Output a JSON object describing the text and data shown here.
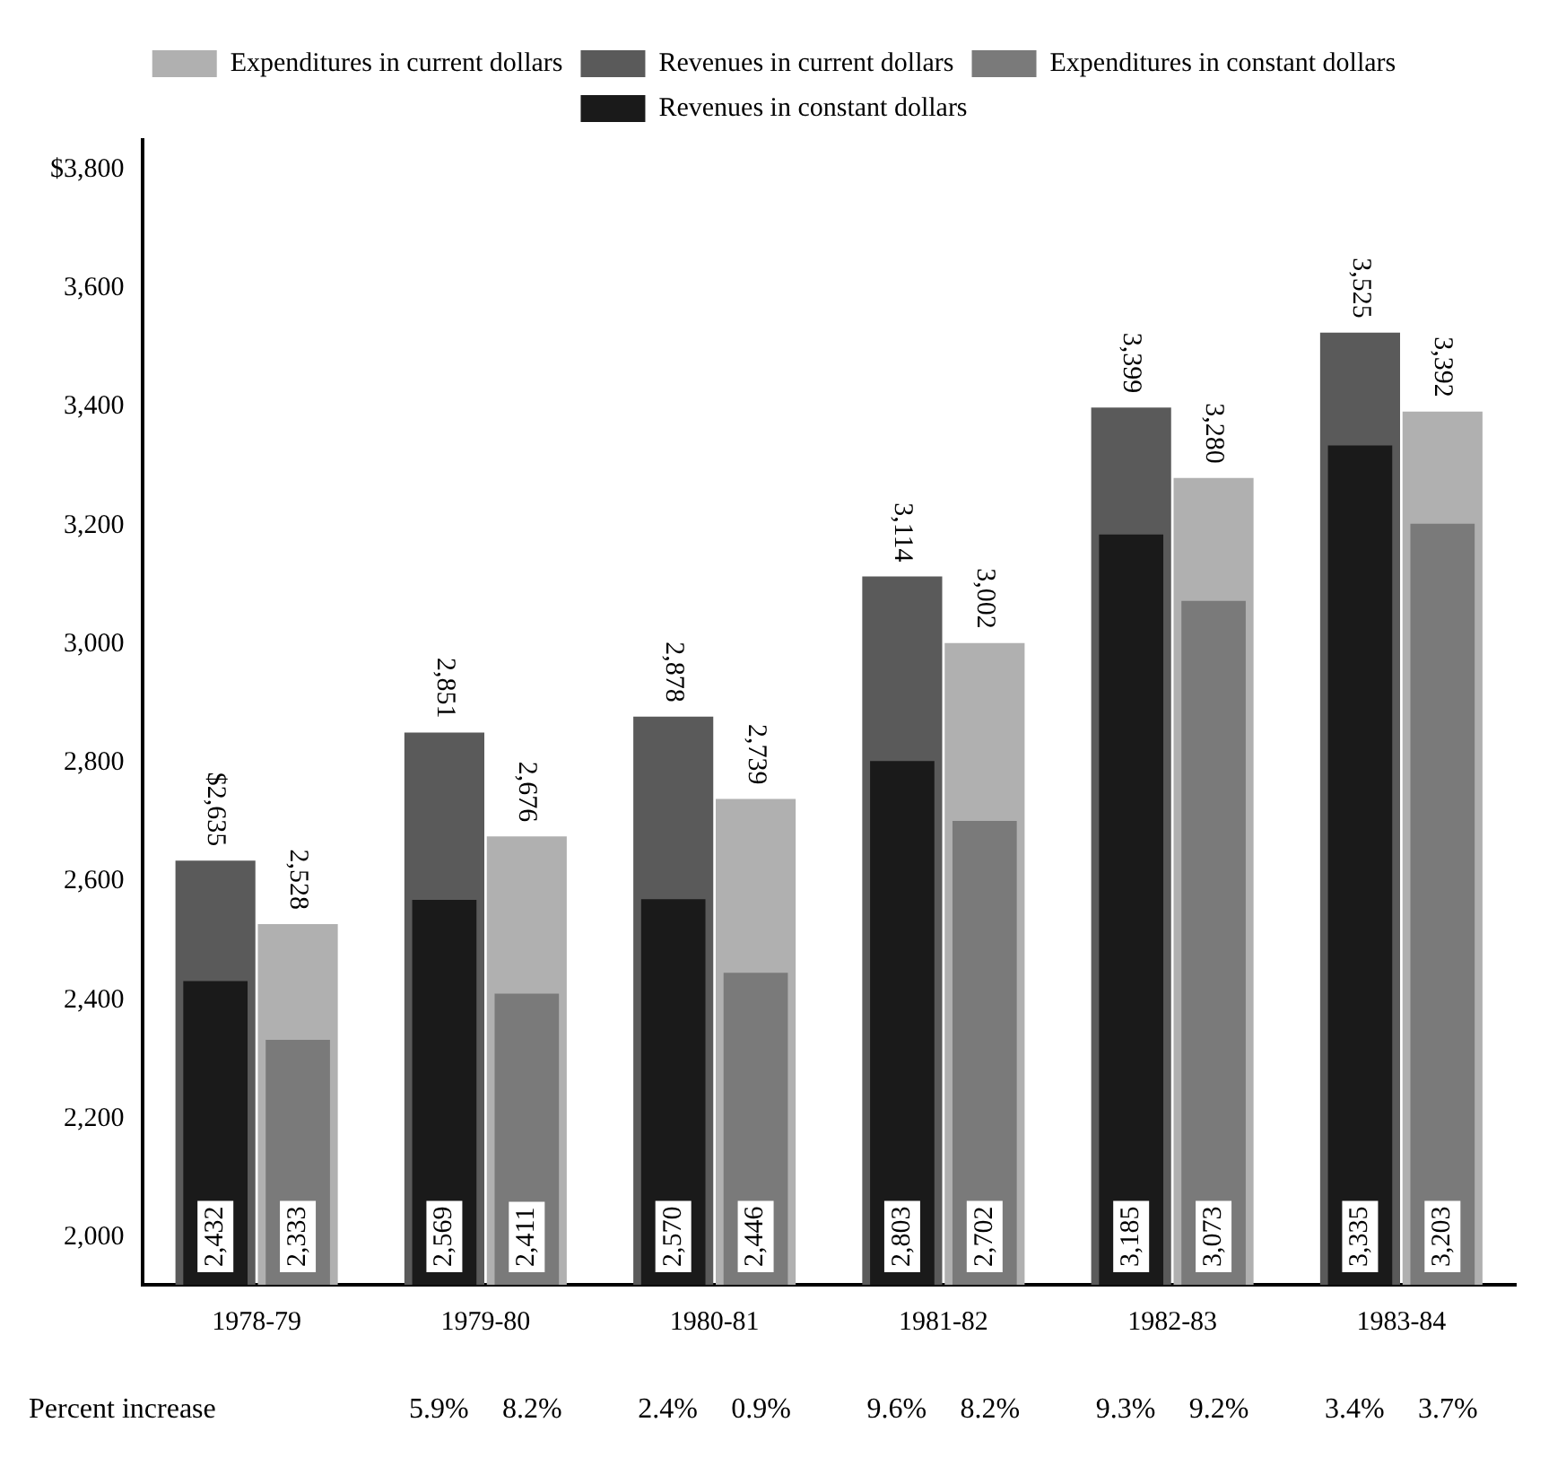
{
  "chart_data": {
    "type": "bar",
    "categories": [
      "1978-79",
      "1979-80",
      "1980-81",
      "1981-82",
      "1982-83",
      "1983-84"
    ],
    "series": [
      {
        "name": "Revenues in current dollars",
        "color": "#5a5a5a",
        "values": [
          2635,
          2851,
          2878,
          3114,
          3399,
          3525
        ],
        "value_labels": [
          "$2,635",
          "2,851",
          "2,878",
          "3,114",
          "3,399",
          "3,525"
        ]
      },
      {
        "name": "Expenditures in current dollars",
        "color": "#b0b0b0",
        "values": [
          2528,
          2676,
          2739,
          3002,
          3280,
          3392
        ],
        "value_labels": [
          "2,528",
          "2,676",
          "2,739",
          "3,002",
          "3,280",
          "3,392"
        ]
      },
      {
        "name": "Revenues in constant dollars",
        "color": "#1a1a1a",
        "values": [
          2432,
          2569,
          2570,
          2803,
          3185,
          3335
        ],
        "value_labels": [
          "2,432",
          "2,569",
          "2,570",
          "2,803",
          "3,185",
          "3,335"
        ]
      },
      {
        "name": "Expenditures in constant dollars",
        "color": "#7a7a7a",
        "values": [
          2333,
          2411,
          2446,
          2702,
          3073,
          3203
        ],
        "value_labels": [
          "2,333",
          "2,411",
          "2,446",
          "2,702",
          "3,073",
          "3,203"
        ]
      }
    ],
    "ylim": [
      1920,
      3850
    ],
    "yticks": [
      {
        "value": 2000,
        "label": "2,000"
      },
      {
        "value": 2200,
        "label": "2,200"
      },
      {
        "value": 2400,
        "label": "2,400"
      },
      {
        "value": 2600,
        "label": "2,600"
      },
      {
        "value": 2800,
        "label": "2,800"
      },
      {
        "value": 3000,
        "label": "3,000"
      },
      {
        "value": 3200,
        "label": "3,200"
      },
      {
        "value": 3400,
        "label": "3,400"
      },
      {
        "value": 3600,
        "label": "3,600"
      },
      {
        "value": 3800,
        "label": "$3,800"
      }
    ],
    "legend": "top",
    "grid": false,
    "annotations": [
      "Percent increase",
      "5.9%",
      "8.2%",
      "2.4%",
      "0.9%",
      "9.6%",
      "8.2%",
      "9.3%",
      "9.2%",
      "3.4%",
      "3.7%"
    ]
  }
}
